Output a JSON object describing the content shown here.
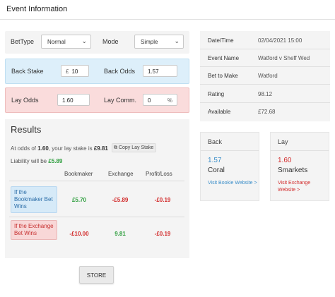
{
  "header": {
    "title": "Event Information"
  },
  "form": {
    "bettype_label": "BetType",
    "bettype_value": "Normal",
    "mode_label": "Mode",
    "mode_value": "Simple",
    "back_stake_label": "Back Stake",
    "back_stake_prefix": "£",
    "back_stake_value": "10",
    "back_odds_label": "Back Odds",
    "back_odds_value": "1.57",
    "lay_odds_label": "Lay Odds",
    "lay_odds_value": "1.60",
    "lay_comm_label": "Lay Comm.",
    "lay_comm_value": "0",
    "lay_comm_suffix": "%"
  },
  "results": {
    "title": "Results",
    "odds_prefix": "At odds of ",
    "odds_value": "1.60",
    "odds_middle": ", your lay stake is ",
    "lay_stake": "£9.81",
    "copy_label": "Copy Lay Stake",
    "liability_prefix": "Liability will be ",
    "liability_value": "£5.89",
    "columns": [
      "Bookmaker",
      "Exchange",
      "Profit/Loss"
    ],
    "rows": [
      {
        "label": "If the Bookmaker Bet Wins",
        "bookmaker": "£5.70",
        "exchange": "-£5.89",
        "profit": "-£0.19"
      },
      {
        "label": "If the Exchange Bet Wins",
        "bookmaker": "-£10.00",
        "exchange": "9.81",
        "profit": "-£0.19"
      }
    ]
  },
  "store_label": "STORE",
  "info": {
    "rows": [
      {
        "label": "Date/Time",
        "value": "02/04/2021 15:00"
      },
      {
        "label": "Event Name",
        "value": "Watford v Sheff Wed"
      },
      {
        "label": "Bet to Make",
        "value": "Watford"
      },
      {
        "label": "Rating",
        "value": "98.12"
      },
      {
        "label": "Available",
        "value": "£72.68"
      }
    ]
  },
  "back_card": {
    "title": "Back",
    "odds": "1.57",
    "name": "Coral",
    "link": "Visit Bookie Website >"
  },
  "lay_card": {
    "title": "Lay",
    "odds": "1.60",
    "name": "Smarkets",
    "link": "Visit Exchange Website >"
  },
  "colors": {
    "green": "#2e9e3e",
    "red": "#d22a2a",
    "blue": "#3b8ec9",
    "back_bg": "#ddeffa",
    "lay_bg": "#fadcdc"
  }
}
